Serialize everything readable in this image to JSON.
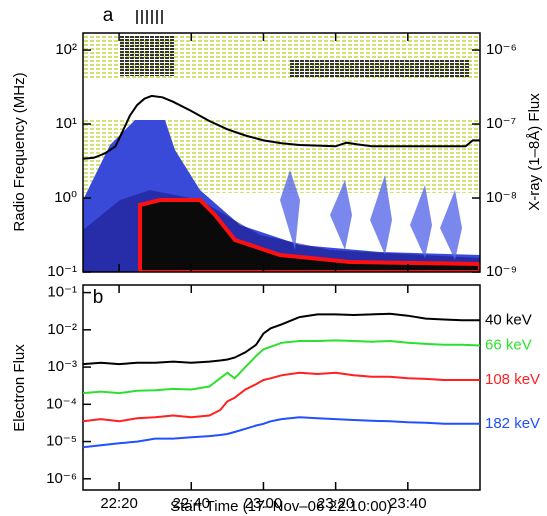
{
  "chart_data": [
    {
      "type": "line",
      "panel_label": "a",
      "ylabel": "Radio Frequency (MHz)",
      "y2label": "X-ray (1–8Å) Flux",
      "xlim": [
        0,
        110
      ],
      "ylog": true,
      "ylim": [
        0.1,
        170
      ],
      "yticks": [
        {
          "value": 0.1,
          "label": "10⁻¹"
        },
        {
          "value": 1,
          "label": "10⁰"
        },
        {
          "value": 10,
          "label": "10¹"
        },
        {
          "value": 100,
          "label": "10²"
        }
      ],
      "y2log": true,
      "y2lim": [
        1e-09,
        1.7e-06
      ],
      "y2ticks": [
        {
          "value": 1e-09,
          "label": "10⁻⁹"
        },
        {
          "value": 1e-08,
          "label": "10⁻⁸"
        },
        {
          "value": 1e-07,
          "label": "10⁻⁷"
        },
        {
          "value": 1e-06,
          "label": "10⁻⁶"
        }
      ],
      "x": [
        0,
        3,
        6,
        9,
        11,
        13,
        15,
        17,
        19,
        22,
        25,
        30,
        35,
        40,
        45,
        50,
        55,
        60,
        70,
        73,
        76,
        80,
        90,
        100,
        106,
        108,
        110
      ],
      "series": [
        {
          "color": "#000000",
          "axis": "y2",
          "values": [
            3.4e-08,
            3.5e-08,
            4e-08,
            5e-08,
            8e-08,
            1.3e-07,
            1.8e-07,
            2.2e-07,
            2.4e-07,
            2.3e-07,
            2e-07,
            1.5e-07,
            1.1e-07,
            8.5e-08,
            7e-08,
            6e-08,
            5.5e-08,
            5.2e-08,
            5e-08,
            5.6e-08,
            5.3e-08,
            5e-08,
            5e-08,
            5e-08,
            5e-08,
            6e-08,
            6e-08
          ]
        }
      ]
    },
    {
      "type": "line",
      "panel_label": "b",
      "ylabel": "Electron Flux",
      "xlabel": "Start Time (17–Nov–06 22:10:00)",
      "xlim": [
        0,
        110
      ],
      "xticks": [
        {
          "value": 10,
          "label": "22:20"
        },
        {
          "value": 30,
          "label": "22:40"
        },
        {
          "value": 50,
          "label": "23:00"
        },
        {
          "value": 70,
          "label": "23:20"
        },
        {
          "value": 90,
          "label": "23:40"
        }
      ],
      "ylog": true,
      "ylim": [
        5e-07,
        0.16
      ],
      "yticks": [
        {
          "value": 1e-06,
          "label": "10⁻⁶"
        },
        {
          "value": 1e-05,
          "label": "10⁻⁵"
        },
        {
          "value": 0.0001,
          "label": "10⁻⁴"
        },
        {
          "value": 0.001,
          "label": "10⁻³"
        },
        {
          "value": 0.01,
          "label": "10⁻²"
        },
        {
          "value": 0.1,
          "label": "10⁻¹"
        }
      ],
      "x": [
        0,
        5,
        10,
        15,
        20,
        25,
        30,
        35,
        38,
        40,
        42,
        45,
        48,
        50,
        52,
        55,
        60,
        65,
        70,
        75,
        80,
        85,
        90,
        95,
        100,
        105,
        110
      ],
      "series": [
        {
          "name": "40 keV",
          "color": "#000000",
          "values": [
            0.0012,
            0.0013,
            0.0012,
            0.0013,
            0.0013,
            0.0014,
            0.0013,
            0.0014,
            0.0015,
            0.0016,
            0.0018,
            0.0025,
            0.004,
            0.008,
            0.011,
            0.014,
            0.022,
            0.026,
            0.026,
            0.025,
            0.026,
            0.027,
            0.024,
            0.02,
            0.019,
            0.018,
            0.018
          ]
        },
        {
          "name": "66 keV",
          "color": "#2ee02e",
          "values": [
            0.0002,
            0.00022,
            0.0002,
            0.00023,
            0.00024,
            0.00026,
            0.00025,
            0.0003,
            0.0005,
            0.0007,
            0.0005,
            0.001,
            0.002,
            0.003,
            0.0035,
            0.0045,
            0.005,
            0.005,
            0.0052,
            0.005,
            0.0048,
            0.005,
            0.0045,
            0.0042,
            0.004,
            0.004,
            0.0038
          ]
        },
        {
          "name": "108 keV",
          "color": "#ff2020",
          "values": [
            3.5e-05,
            4e-05,
            3.5e-05,
            4.2e-05,
            4.5e-05,
            5e-05,
            4.5e-05,
            5e-05,
            7e-05,
            0.00012,
            0.00015,
            0.00025,
            0.00035,
            0.00045,
            0.0005,
            0.0006,
            0.0007,
            0.00065,
            0.0007,
            0.0006,
            0.00055,
            0.00055,
            0.0005,
            0.00048,
            0.00045,
            0.00045,
            0.00045
          ]
        },
        {
          "name": "182 keV",
          "color": "#2050ff",
          "values": [
            7e-06,
            8e-06,
            9e-06,
            1e-05,
            1.2e-05,
            1.2e-05,
            1.3e-05,
            1.4e-05,
            1.5e-05,
            1.6e-05,
            1.8e-05,
            2.2e-05,
            2.7e-05,
            3e-05,
            3.5e-05,
            4e-05,
            4.5e-05,
            4.2e-05,
            4e-05,
            3.8e-05,
            3.6e-05,
            3.5e-05,
            3.3e-05,
            3.2e-05,
            3e-05,
            3e-05,
            3e-05
          ]
        }
      ]
    }
  ]
}
